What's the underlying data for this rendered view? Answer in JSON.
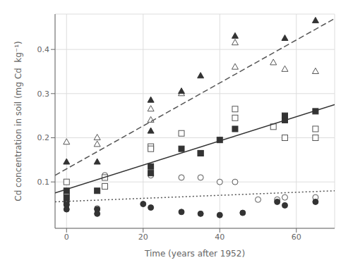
{
  "chart_data": {
    "type": "scatter",
    "xlabel": "Time (years after 1952)",
    "ylabel": "Cd concentration in soil (mg Cd  kg⁻¹)",
    "xlim": [
      -3,
      70
    ],
    "ylim": [
      -0.005,
      0.48
    ],
    "xticks": [
      0,
      20,
      40,
      60
    ],
    "yticks": [
      0.1,
      0.2,
      0.3,
      0.4
    ],
    "grid": true,
    "series": [
      {
        "type": "scatter",
        "marker": "open_circle",
        "color": "#555555",
        "x": [
          0,
          0,
          8,
          10,
          22,
          30,
          35,
          40,
          44,
          50,
          55,
          57,
          65
        ],
        "values": [
          0.073,
          0.05,
          0.04,
          0.115,
          0.115,
          0.11,
          0.11,
          0.1,
          0.1,
          0.06,
          0.06,
          0.065,
          0.065
        ]
      },
      {
        "type": "scatter",
        "marker": "circle",
        "color": "#333333",
        "x": [
          0,
          0,
          0,
          8,
          8,
          20,
          22,
          30,
          35,
          40,
          46,
          55,
          57,
          65
        ],
        "values": [
          0.055,
          0.048,
          0.038,
          0.038,
          0.028,
          0.05,
          0.042,
          0.032,
          0.028,
          0.025,
          0.03,
          0.055,
          0.047,
          0.055
        ]
      },
      {
        "type": "scatter",
        "marker": "open_square",
        "color": "#555555",
        "x": [
          0,
          10,
          10,
          22,
          22,
          30,
          35,
          44,
          44,
          54,
          57,
          65,
          65
        ],
        "values": [
          0.1,
          0.11,
          0.09,
          0.18,
          0.175,
          0.21,
          0.165,
          0.265,
          0.245,
          0.225,
          0.2,
          0.2,
          0.22
        ]
      },
      {
        "type": "scatter",
        "marker": "square",
        "color": "#333333",
        "x": [
          0,
          0,
          8,
          22,
          22,
          30,
          35,
          40,
          44,
          57,
          57,
          65
        ],
        "values": [
          0.065,
          0.08,
          0.08,
          0.12,
          0.135,
          0.175,
          0.165,
          0.195,
          0.22,
          0.24,
          0.25,
          0.26
        ]
      },
      {
        "type": "scatter",
        "marker": "open_triangle",
        "color": "#555555",
        "x": [
          0,
          8,
          8,
          22,
          22,
          30,
          44,
          44,
          54,
          57,
          65
        ],
        "values": [
          0.19,
          0.2,
          0.185,
          0.265,
          0.24,
          0.3,
          0.415,
          0.36,
          0.37,
          0.355,
          0.35
        ]
      },
      {
        "type": "scatter",
        "marker": "triangle",
        "color": "#333333",
        "x": [
          0,
          8,
          22,
          22,
          30,
          35,
          44,
          57,
          65
        ],
        "values": [
          0.145,
          0.145,
          0.215,
          0.285,
          0.305,
          0.34,
          0.43,
          0.425,
          0.465
        ]
      },
      {
        "type": "line",
        "line_style": "solid",
        "color": "#333333",
        "x": [
          -3,
          70
        ],
        "values": [
          0.075,
          0.275
        ]
      },
      {
        "type": "line",
        "line_style": "dashed",
        "color": "#555555",
        "x": [
          -3,
          70
        ],
        "values": [
          0.115,
          0.47
        ]
      },
      {
        "type": "line",
        "line_style": "dotted",
        "color": "#555555",
        "x": [
          -3,
          70
        ],
        "values": [
          0.055,
          0.08
        ]
      }
    ]
  }
}
